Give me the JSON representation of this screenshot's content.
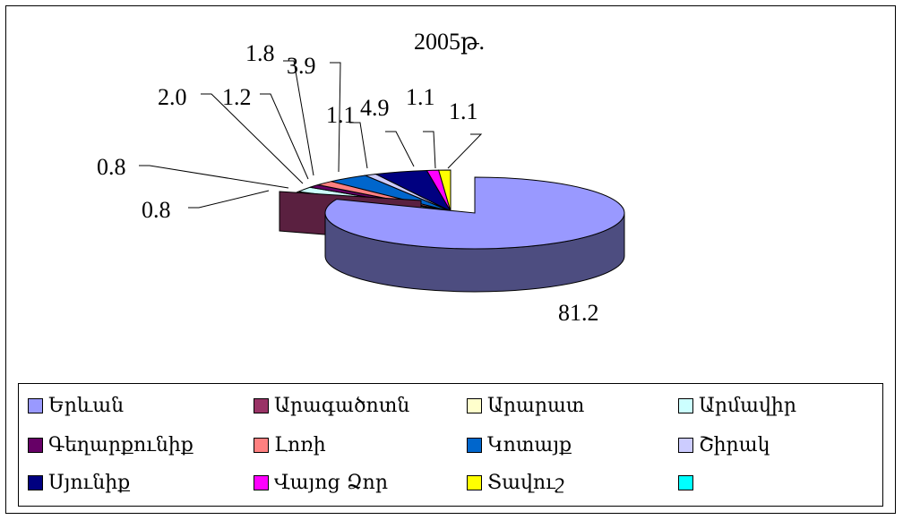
{
  "chart_data": {
    "type": "pie",
    "title": "2005թ.",
    "style": "3d-exploded",
    "series": [
      {
        "name": "Երևան",
        "value": 81.2,
        "label": "81.2",
        "color": "#9999FF"
      },
      {
        "name": "Արագածոտն",
        "value": 0.8,
        "label": "0.8",
        "color": "#993366"
      },
      {
        "name": "Արարատ",
        "value": 0.8,
        "label": "0.8",
        "color": "#FFFFCC"
      },
      {
        "name": "Արմավիր",
        "value": 2.0,
        "label": "2.0",
        "color": "#CCFFFF"
      },
      {
        "name": "Գեղարքունիք",
        "value": 1.2,
        "label": "1.2",
        "color": "#660066"
      },
      {
        "name": "Լոռի",
        "value": 1.8,
        "label": "1.8",
        "color": "#FF8080"
      },
      {
        "name": "Կոտայք",
        "value": 3.9,
        "label": "3.9",
        "color": "#0066CC"
      },
      {
        "name": "Շիրակ",
        "value": 1.1,
        "label": "1.1",
        "color": "#CCCCFF"
      },
      {
        "name": "Սյունիք",
        "value": 4.9,
        "label": "4.9",
        "color": "#000080"
      },
      {
        "name": "Վայոց Ձոր",
        "value": 1.1,
        "label": "1.1",
        "color": "#FF00FF"
      },
      {
        "name": "Տավուշ",
        "value": 1.1,
        "label": "1.1",
        "color": "#FFFF00"
      },
      {
        "name": "",
        "value": 0,
        "label": "",
        "color": "#00FFFF"
      }
    ],
    "legend_position": "bottom"
  }
}
